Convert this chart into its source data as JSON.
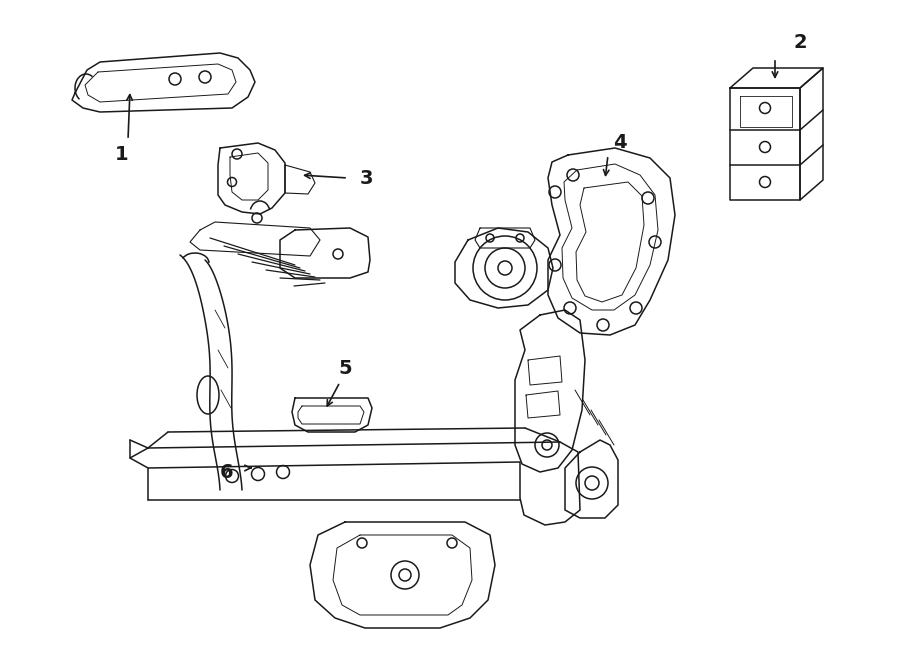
{
  "bg_color": "#ffffff",
  "line_color": "#1a1a1a",
  "fig_width": 9.0,
  "fig_height": 6.61,
  "dpi": 100,
  "parts": {
    "part1_label": "1",
    "part2_label": "2",
    "part3_label": "3",
    "part4_label": "4",
    "part5_label": "5",
    "part6_label": "6"
  }
}
